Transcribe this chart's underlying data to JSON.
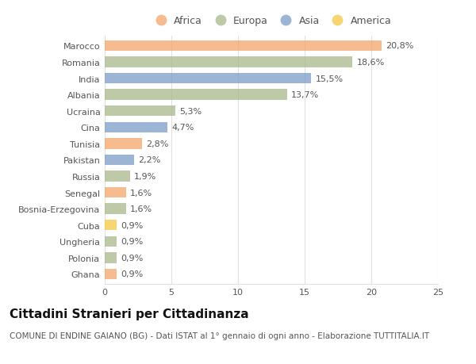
{
  "categories": [
    "Marocco",
    "Romania",
    "India",
    "Albania",
    "Ucraina",
    "Cina",
    "Tunisia",
    "Pakistan",
    "Russia",
    "Senegal",
    "Bosnia-Erzegovina",
    "Cuba",
    "Ungheria",
    "Polonia",
    "Ghana"
  ],
  "values": [
    20.8,
    18.6,
    15.5,
    13.7,
    5.3,
    4.7,
    2.8,
    2.2,
    1.9,
    1.6,
    1.6,
    0.9,
    0.9,
    0.9,
    0.9
  ],
  "labels": [
    "20,8%",
    "18,6%",
    "15,5%",
    "13,7%",
    "5,3%",
    "4,7%",
    "2,8%",
    "2,2%",
    "1,9%",
    "1,6%",
    "1,6%",
    "0,9%",
    "0,9%",
    "0,9%",
    "0,9%"
  ],
  "continents": [
    "Africa",
    "Europa",
    "Asia",
    "Europa",
    "Europa",
    "Asia",
    "Africa",
    "Asia",
    "Europa",
    "Africa",
    "Europa",
    "America",
    "Europa",
    "Europa",
    "Africa"
  ],
  "continent_colors": {
    "Africa": "#F4A468",
    "Europa": "#A8B98A",
    "Asia": "#7B9CC8",
    "America": "#F5C842"
  },
  "legend_order": [
    "Africa",
    "Europa",
    "Asia",
    "America"
  ],
  "title": "Cittadini Stranieri per Cittadinanza",
  "subtitle": "COMUNE DI ENDINE GAIANO (BG) - Dati ISTAT al 1° gennaio di ogni anno - Elaborazione TUTTITALIA.IT",
  "xlim": [
    0,
    25
  ],
  "xticks": [
    0,
    5,
    10,
    15,
    20,
    25
  ],
  "background_color": "#ffffff",
  "bar_height": 0.65,
  "grid_color": "#e0e0e0",
  "title_fontsize": 11,
  "subtitle_fontsize": 7.5,
  "label_fontsize": 8,
  "tick_fontsize": 8,
  "legend_fontsize": 9,
  "bar_alpha": 0.75
}
